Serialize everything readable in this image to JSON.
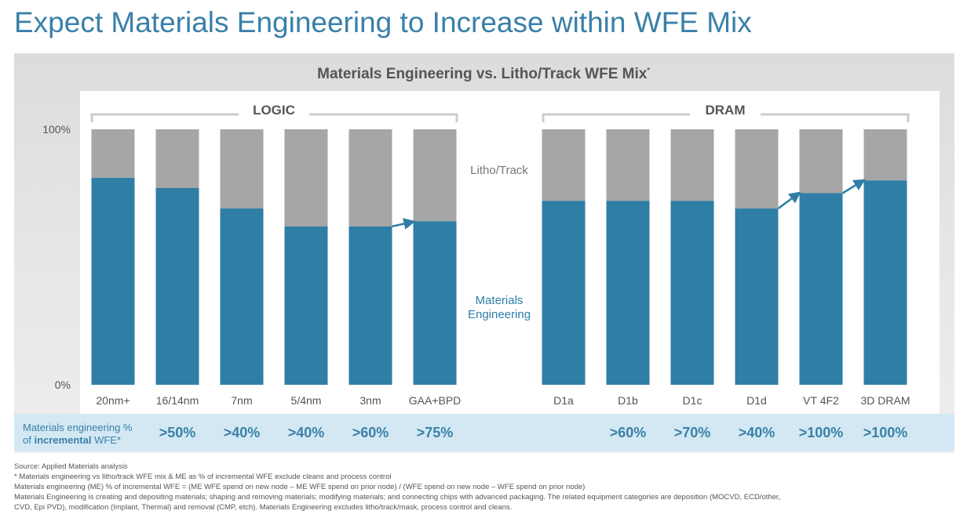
{
  "page_title": "Expect Materials Engineering to Increase within WFE Mix",
  "chart_data": {
    "type": "bar",
    "stacked": true,
    "title": "Materials Engineering vs. Litho/Track WFE Mix",
    "title_mark": "*",
    "ylim": [
      0,
      100
    ],
    "yticks": [
      "0%",
      "100%"
    ],
    "groups": [
      {
        "label": "LOGIC",
        "categories": [
          "20nm+",
          "16/14nm",
          "7nm",
          "5/4nm",
          "3nm",
          "GAA+BPD"
        ]
      },
      {
        "label": "DRAM",
        "categories": [
          "D1a",
          "D1b",
          "D1c",
          "D1d",
          "VT 4F2",
          "3D DRAM"
        ]
      }
    ],
    "categories": [
      "20nm+",
      "16/14nm",
      "7nm",
      "5/4nm",
      "3nm",
      "GAA+BPD",
      "D1a",
      "D1b",
      "D1c",
      "D1d",
      "VT 4F2",
      "3D DRAM"
    ],
    "series": [
      {
        "name": "Materials Engineering",
        "color": "#2f7ea6",
        "values": [
          81,
          77,
          69,
          62,
          62,
          64,
          72,
          72,
          72,
          69,
          75,
          80
        ]
      },
      {
        "name": "Litho/Track",
        "color": "#a6a6a6",
        "values": [
          19,
          23,
          31,
          38,
          38,
          36,
          28,
          28,
          28,
          31,
          25,
          20
        ]
      }
    ],
    "arrows": [
      [
        "3nm",
        "GAA+BPD"
      ],
      [
        "D1d",
        "VT 4F2"
      ],
      [
        "VT 4F2",
        "3D DRAM"
      ]
    ],
    "grid": false
  },
  "metric_row": {
    "label_line1": "Materials engineering %",
    "label_pre": "of ",
    "label_bold": "incremental",
    "label_post": " WFE*",
    "values": [
      ">50%",
      ">40%",
      ">40%",
      ">60%",
      ">75%",
      "",
      ">60%",
      ">70%",
      ">40%",
      ">100%",
      ">100%"
    ]
  },
  "footnotes": [
    "Source: Applied Materials analysis",
    "* Materials engineering vs litho/track WFE mix & ME as % of incremental WFE exclude cleans and process control",
    "Materials engineering (ME) % of incremental WFE = (ME WFE spend on new node – ME WFE spend on prior node) / (WFE spend on new node – WFE spend on prior node)",
    "Materials Engineering is creating and depositing materials; shaping and removing materials; modifying materials; and connecting chips with advanced packaging. The related equipment categories are deposition (MOCVD, ECD/other,",
    "CVD, Epi PVD), modification (Implant, Thermal) and removal (CMP, etch). Materials Engineering excludes litho/track/mask, process control and cleans."
  ]
}
